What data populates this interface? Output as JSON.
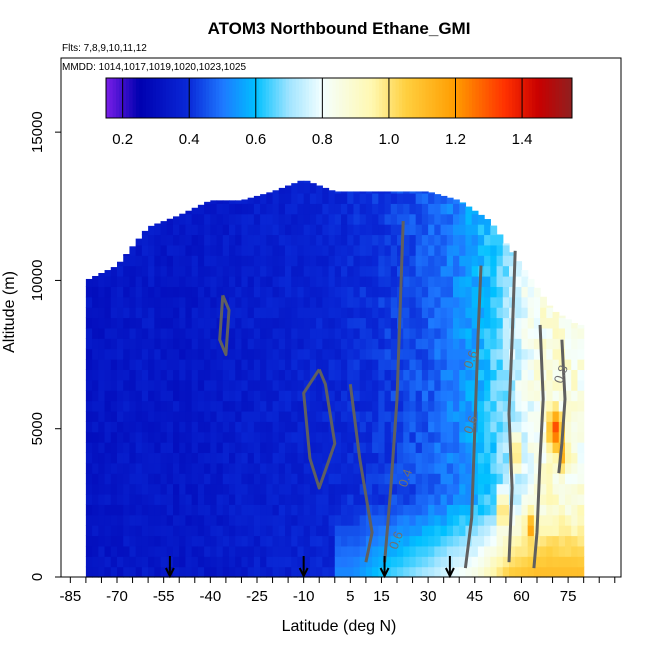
{
  "chart_data": {
    "type": "heatmap",
    "title": "ATOM3 Northbound Ethane_GMI",
    "flights_label": "Flts: 7,8,9,10,11,12",
    "dates_label": "MMDD: 1014,1017,1019,1020,1023,1025",
    "xlabel": "Latitude (deg N)",
    "ylabel": "Altitude (m)",
    "xlim": [
      -88,
      92
    ],
    "ylim": [
      0,
      17500
    ],
    "x_ticks": [
      -85,
      -70,
      -55,
      -40,
      -25,
      -10,
      5,
      15,
      30,
      45,
      60,
      75
    ],
    "y_ticks": [
      0,
      5000,
      10000,
      15000
    ],
    "colorbar": {
      "range": [
        0.15,
        1.55
      ],
      "ticks": [
        0.2,
        0.4,
        0.6,
        0.8,
        1.0,
        1.2,
        1.4
      ],
      "tick_labels": [
        "0.2",
        "0.4",
        "0.6",
        "0.8",
        "1.0",
        "1.2",
        "1.4"
      ],
      "colors": [
        "#7a1ee8",
        "#0000b0",
        "#0a2ad8",
        "#1e78ff",
        "#00c0ff",
        "#a0e4ff",
        "#f4ffff",
        "#fff8b0",
        "#ffd040",
        "#ff9c00",
        "#ff3000",
        "#c80000",
        "#902020"
      ],
      "color_stops": [
        0.15,
        0.25,
        0.4,
        0.5,
        0.6,
        0.7,
        0.8,
        0.95,
        1.05,
        1.2,
        1.35,
        1.45,
        1.55
      ]
    },
    "value_field": {
      "description_rows": "altitude (m) rows; value by latitude",
      "profile": [
        {
          "lat": -80,
          "top": 10000,
          "value": 0.32
        },
        {
          "lat": -70,
          "top": 10500,
          "value": 0.33
        },
        {
          "lat": -60,
          "top": 11800,
          "value": 0.34
        },
        {
          "lat": -50,
          "top": 12200,
          "value": 0.33
        },
        {
          "lat": -40,
          "top": 12700,
          "value": 0.34
        },
        {
          "lat": -30,
          "top": 12700,
          "value": 0.35
        },
        {
          "lat": -20,
          "top": 13000,
          "value": 0.36
        },
        {
          "lat": -10,
          "top": 13400,
          "value": 0.37
        },
        {
          "lat": 0,
          "top": 13000,
          "value": 0.38
        },
        {
          "lat": 10,
          "top": 13000,
          "value": 0.4
        },
        {
          "lat": 20,
          "top": 13000,
          "value": 0.43
        },
        {
          "lat": 30,
          "top": 13000,
          "value": 0.46
        },
        {
          "lat": 40,
          "top": 12700,
          "value": 0.52
        },
        {
          "lat": 50,
          "top": 12000,
          "value": 0.62
        },
        {
          "lat": 60,
          "top": 10500,
          "value": 0.78
        },
        {
          "lat": 70,
          "top": 9000,
          "value": 0.88
        },
        {
          "lat": 78,
          "top": 8500,
          "value": 0.85
        }
      ],
      "boundary_layer": [
        {
          "lat": 5,
          "value": 0.52
        },
        {
          "lat": 15,
          "value": 0.62
        },
        {
          "lat": 30,
          "value": 0.72
        },
        {
          "lat": 45,
          "value": 0.85
        },
        {
          "lat": 55,
          "value": 1.05
        },
        {
          "lat": 65,
          "value": 1.1
        }
      ],
      "hotspots": [
        {
          "lat": 57,
          "alt": 4000,
          "value": 1.1
        },
        {
          "lat": 62,
          "alt": 1500,
          "value": 1.2
        },
        {
          "lat": 70,
          "alt": 4800,
          "value": 1.35
        },
        {
          "lat": 72,
          "alt": 4000,
          "value": 1.2
        },
        {
          "lat": 53,
          "alt": 2000,
          "value": 1.1
        }
      ]
    },
    "contour_labels": [
      {
        "text": "0.4",
        "lat": 23,
        "alt": 3000
      },
      {
        "text": "0.6",
        "lat": 20,
        "alt": 900
      },
      {
        "text": "0.6",
        "lat": 44,
        "alt": 7000
      },
      {
        "text": "0.6",
        "lat": 44,
        "alt": 4800
      },
      {
        "text": "0.8",
        "lat": 73,
        "alt": 6500
      }
    ],
    "flight_markers_lat": [
      -53,
      -10,
      16,
      37
    ]
  }
}
